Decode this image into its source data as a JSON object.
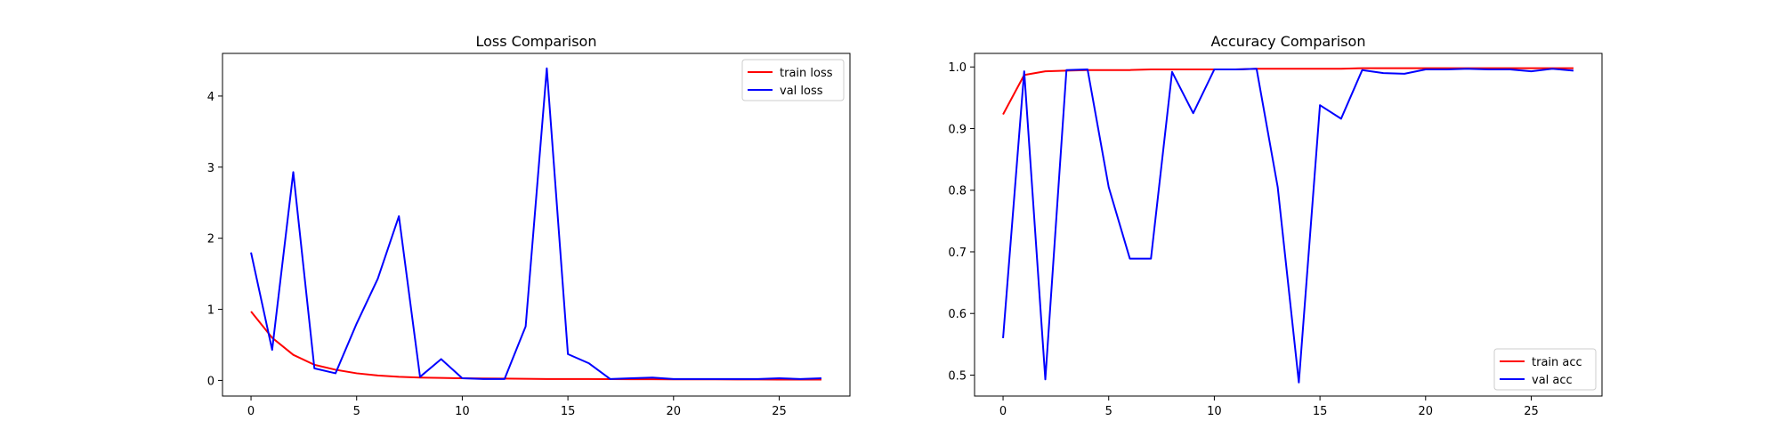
{
  "chart_data": [
    {
      "type": "line",
      "title": "Loss Comparison",
      "xlabel": "",
      "ylabel": "",
      "xlim": [
        -1.35,
        28.35
      ],
      "ylim": [
        -0.22,
        4.6
      ],
      "xticks": [
        0,
        5,
        10,
        15,
        20,
        25
      ],
      "yticks": [
        0,
        1,
        2,
        3,
        4
      ],
      "legend": "top-right",
      "grid": false,
      "x": [
        0,
        1,
        2,
        3,
        4,
        5,
        6,
        7,
        8,
        9,
        10,
        11,
        12,
        13,
        14,
        15,
        16,
        17,
        18,
        19,
        20,
        21,
        22,
        23,
        24,
        25,
        26,
        27
      ],
      "series": [
        {
          "name": "train loss",
          "color": "#ff0000",
          "values": [
            0.97,
            0.6,
            0.36,
            0.22,
            0.15,
            0.1,
            0.07,
            0.05,
            0.04,
            0.035,
            0.03,
            0.028,
            0.025,
            0.022,
            0.02,
            0.02,
            0.02,
            0.018,
            0.017,
            0.016,
            0.015,
            0.015,
            0.014,
            0.013,
            0.013,
            0.012,
            0.012,
            0.012
          ]
        },
        {
          "name": "val loss",
          "color": "#0000ff",
          "values": [
            1.8,
            0.43,
            2.93,
            0.17,
            0.1,
            0.8,
            1.43,
            2.31,
            0.05,
            0.3,
            0.03,
            0.02,
            0.02,
            0.76,
            4.39,
            0.37,
            0.24,
            0.02,
            0.03,
            0.04,
            0.02,
            0.02,
            0.02,
            0.02,
            0.02,
            0.03,
            0.02,
            0.03
          ]
        }
      ]
    },
    {
      "type": "line",
      "title": "Accuracy Comparison",
      "xlabel": "",
      "ylabel": "",
      "xlim": [
        -1.35,
        28.35
      ],
      "ylim": [
        0.466,
        1.022
      ],
      "xticks": [
        0,
        5,
        10,
        15,
        20,
        25
      ],
      "yticks": [
        0.5,
        0.6,
        0.7,
        0.8,
        0.9,
        1.0
      ],
      "ytick_labels": [
        "0.5",
        "0.6",
        "0.7",
        "0.8",
        "0.9",
        "1.0"
      ],
      "legend": "bottom-right",
      "grid": false,
      "x": [
        0,
        1,
        2,
        3,
        4,
        5,
        6,
        7,
        8,
        9,
        10,
        11,
        12,
        13,
        14,
        15,
        16,
        17,
        18,
        19,
        20,
        21,
        22,
        23,
        24,
        25,
        26,
        27
      ],
      "series": [
        {
          "name": "train acc",
          "color": "#ff0000",
          "values": [
            0.923,
            0.987,
            0.993,
            0.994,
            0.995,
            0.995,
            0.995,
            0.996,
            0.996,
            0.996,
            0.996,
            0.996,
            0.997,
            0.997,
            0.997,
            0.997,
            0.997,
            0.998,
            0.998,
            0.998,
            0.998,
            0.998,
            0.998,
            0.998,
            0.998,
            0.998,
            0.998,
            0.998
          ]
        },
        {
          "name": "val acc",
          "color": "#0000ff",
          "values": [
            0.56,
            0.993,
            0.493,
            0.995,
            0.996,
            0.805,
            0.689,
            0.689,
            0.992,
            0.925,
            0.996,
            0.996,
            0.997,
            0.805,
            0.488,
            0.938,
            0.916,
            0.995,
            0.99,
            0.989,
            0.996,
            0.996,
            0.997,
            0.996,
            0.996,
            0.993,
            0.997,
            0.994
          ]
        }
      ]
    }
  ]
}
